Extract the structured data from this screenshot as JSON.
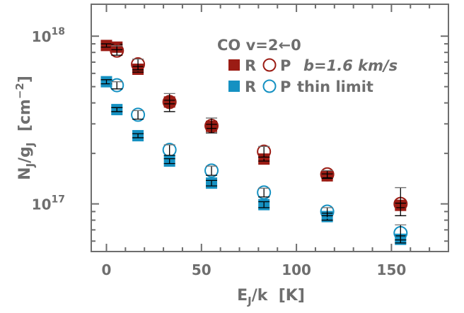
{
  "colors": {
    "R_thick": "#9b1c14",
    "R_thin": "#1591c2",
    "axis": "#6e6e6e",
    "errorbar": "#000000",
    "errorbar_upper": "#6e6e6e"
  },
  "chart_data": {
    "type": "scatter",
    "x_scale": "linear",
    "y_scale": "log",
    "xlim": [
      -8,
      180
    ],
    "ylim": [
      5.2e+16,
      1.55e+18
    ],
    "x_ticks": [
      0,
      50,
      100,
      150
    ],
    "x_tick_labels": [
      "0",
      "50",
      "100",
      "150"
    ],
    "x_minor_ticks": [
      10,
      20,
      30,
      40,
      60,
      70,
      80,
      90,
      110,
      120,
      130,
      140,
      160,
      170
    ],
    "y_major_labels": [
      {
        "value": 1e+17,
        "base": "10",
        "exp": "17"
      },
      {
        "value": 1e+18,
        "base": "10",
        "exp": "18"
      }
    ],
    "y_minor_ticks": [
      6e+16,
      7e+16,
      8e+16,
      9e+16,
      2e+17,
      3e+17,
      4e+17,
      5e+17,
      6e+17,
      7e+17,
      8e+17,
      9e+17
    ],
    "xlabel": {
      "main": "E",
      "sub": "J",
      "rest": "/k  [K]"
    },
    "ylabel": {
      "p1": "N",
      "sub1": "J",
      "p2": "/g",
      "sub2": "J",
      "p3": "  [cm",
      "sup": "−2",
      "p4": "]"
    },
    "legend": {
      "title": "CO v=2←0",
      "rows": [
        {
          "sym1": "R",
          "sym2": "P",
          "label": "b=1.6 km/s",
          "series": "R_thick"
        },
        {
          "sym1": "R",
          "sym2": "P",
          "label": "thin limit",
          "series": "R_thin"
        }
      ]
    },
    "series": [
      {
        "key": "R_thick",
        "marker": "filled-square",
        "color": "#9b1c14",
        "points": [
          {
            "x": 0.0,
            "y": 8.8e+17,
            "lo": 8.6e+17,
            "hi": 9e+17
          },
          {
            "x": 5.5,
            "y": 8.6e+17,
            "lo": 8.3e+17,
            "hi": 8.95e+17
          },
          {
            "x": 16.6,
            "y": 6.35e+17,
            "lo": 6.1e+17,
            "hi": 6.6e+17
          },
          {
            "x": 33.2,
            "y": 4.05e+17,
            "lo": 3.95e+17,
            "hi": 4.15e+17
          },
          {
            "x": 55.3,
            "y": 2.9e+17,
            "lo": 2.82e+17,
            "hi": 2.98e+17
          },
          {
            "x": 82.9,
            "y": 1.85e+17,
            "lo": 1.8e+17,
            "hi": 1.9e+17
          },
          {
            "x": 116.2,
            "y": 1.47e+17,
            "lo": 1.43e+17,
            "hi": 1.51e+17
          },
          {
            "x": 154.8,
            "y": 9.8e+16,
            "lo": 9.5e+16,
            "hi": 1.01e+17
          }
        ]
      },
      {
        "key": "P_thick",
        "marker": "open-circle",
        "color": "#9b1c14",
        "points": [
          {
            "x": 5.5,
            "y": 8.2e+17,
            "lo": 7.7e+17,
            "hi": 8.75e+17
          },
          {
            "x": 16.6,
            "y": 6.8e+17,
            "lo": 6.3e+17,
            "hi": 7.3e+17
          },
          {
            "x": 33.2,
            "y": 4.05e+17,
            "lo": 3.55e+17,
            "hi": 4.55e+17
          },
          {
            "x": 55.3,
            "y": 2.92e+17,
            "lo": 2.65e+17,
            "hi": 3.25e+17
          },
          {
            "x": 82.9,
            "y": 2.05e+17,
            "lo": 1.9e+17,
            "hi": 2.2e+17
          },
          {
            "x": 116.2,
            "y": 1.5e+17,
            "lo": 1.42e+17,
            "hi": 1.58e+17
          },
          {
            "x": 154.8,
            "y": 1e+17,
            "lo": 8.5e+16,
            "hi": 1.25e+17
          }
        ]
      },
      {
        "key": "R_thin",
        "marker": "filled-square",
        "color": "#1591c2",
        "points": [
          {
            "x": 0.0,
            "y": 5.35e+17,
            "lo": 5.2e+17,
            "hi": 5.5e+17
          },
          {
            "x": 5.5,
            "y": 3.65e+17,
            "lo": 3.55e+17,
            "hi": 3.75e+17
          },
          {
            "x": 16.6,
            "y": 2.55e+17,
            "lo": 2.48e+17,
            "hi": 2.62e+17
          },
          {
            "x": 33.2,
            "y": 1.8e+17,
            "lo": 1.74e+17,
            "hi": 1.86e+17
          },
          {
            "x": 55.3,
            "y": 1.33e+17,
            "lo": 1.28e+17,
            "hi": 1.38e+17
          },
          {
            "x": 82.9,
            "y": 9.9e+16,
            "lo": 9.5e+16,
            "hi": 1.03e+17
          },
          {
            "x": 116.2,
            "y": 8.4e+16,
            "lo": 8e+16,
            "hi": 8.8e+16
          },
          {
            "x": 154.8,
            "y": 6.15e+16,
            "lo": 5.85e+16,
            "hi": 6.45e+16
          }
        ]
      },
      {
        "key": "P_thin",
        "marker": "open-circle",
        "color": "#1591c2",
        "points": [
          {
            "x": 5.5,
            "y": 5.1e+17,
            "lo": 4.85e+17,
            "hi": 5.35e+17
          },
          {
            "x": 16.6,
            "y": 3.4e+17,
            "lo": 3.2e+17,
            "hi": 3.6e+17
          },
          {
            "x": 33.2,
            "y": 2.1e+17,
            "lo": 1.95e+17,
            "hi": 2.25e+17
          },
          {
            "x": 55.3,
            "y": 1.58e+17,
            "lo": 1.48e+17,
            "hi": 1.68e+17
          },
          {
            "x": 82.9,
            "y": 1.17e+17,
            "lo": 1.1e+17,
            "hi": 1.24e+17
          },
          {
            "x": 116.2,
            "y": 9e+16,
            "lo": 8.5e+16,
            "hi": 9.5e+16
          },
          {
            "x": 154.8,
            "y": 6.7e+16,
            "lo": 6.1e+16,
            "hi": 7.5e+16
          }
        ]
      }
    ]
  }
}
